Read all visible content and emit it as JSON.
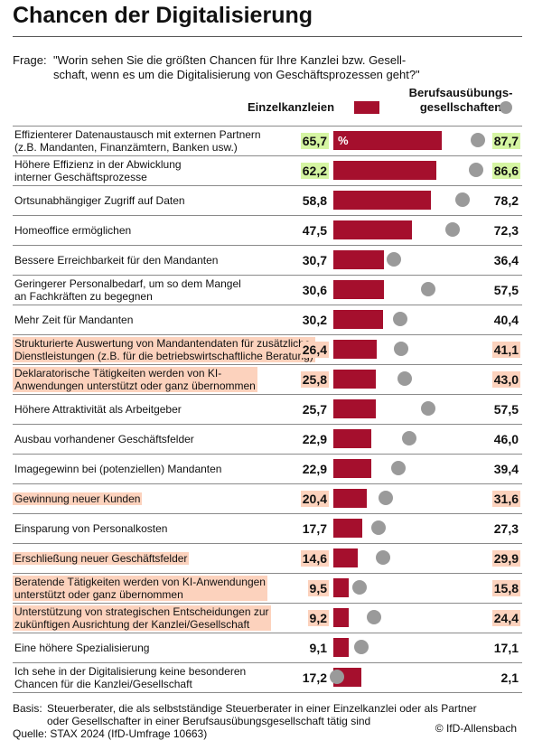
{
  "chart_data": {
    "type": "bar_dot",
    "title": "Chancen der Digitalisierung",
    "question": {
      "label": "Frage:",
      "text": "\"Worin sehen Sie die größten Chancen für Ihre Kanzlei bzw. Gesell-\nschaft, wenn es um die Digitalisierung von Geschäftsprozessen geht?\""
    },
    "categories": [
      "Effizienterer Datenaustausch mit externen Partnern\n(z.B. Mandanten, Finanzämtern, Banken usw.)",
      "Höhere Effizienz in der Abwicklung\ninterner Geschäftsprozesse",
      "Ortsunabhängiger Zugriff auf Daten",
      "Homeoffice ermöglichen",
      "Bessere Erreichbarkeit für den Mandanten",
      "Geringerer Personalbedarf, um so dem Mangel\nan Fachkräften zu begegnen",
      "Mehr Zeit für Mandanten",
      "Strukturierte Auswertung von Mandantendaten für zusätzliche\nDienstleistungen (z.B. für die betriebswirtschaftliche Beratung)",
      "Deklaratorische Tätigkeiten werden von KI-\nAnwendungen unterstützt oder ganz übernommen",
      "Höhere Attraktivität als Arbeitgeber",
      "Ausbau vorhandener Geschäftsfelder",
      "Imagegewinn bei (potenziellen) Mandanten",
      "Gewinnung neuer Kunden",
      "Einsparung von Personalkosten",
      "Erschließung neuer Geschäftsfelder",
      "Beratende Tätigkeiten werden von KI-Anwendungen\nunterstützt oder ganz übernommen",
      "Unterstützung von strategischen Entscheidungen zur\nzukünftigen Ausrichtung der Kanzlei/Gesellschaft",
      "Eine höhere Spezialisierung",
      "Ich sehe in der Digitalisierung keine besonderen\nChancen für die Kanzlei/Gesellschaft"
    ],
    "series": [
      {
        "name": "Einzelkanzleien",
        "color": "#a50f2d",
        "mark": "bar",
        "values": [
          65.7,
          62.2,
          58.8,
          47.5,
          30.7,
          30.6,
          30.2,
          26.4,
          25.8,
          25.7,
          22.9,
          22.9,
          20.4,
          17.7,
          14.6,
          9.5,
          9.2,
          9.1,
          17.2
        ],
        "value_labels": [
          "65,7",
          "62,2",
          "58,8",
          "47,5",
          "30,7",
          "30,6",
          "30,2",
          "26,4",
          "25,8",
          "25,7",
          "22,9",
          "22,9",
          "20,4",
          "17,7",
          "14,6",
          "9,5",
          "9,2",
          "9,1",
          "17,2"
        ]
      },
      {
        "name": "Berufsausübungs-\ngesellschaften",
        "color": "#9a9a9a",
        "mark": "dot",
        "values": [
          87.7,
          86.6,
          78.2,
          72.3,
          36.4,
          57.5,
          40.4,
          41.1,
          43.0,
          57.5,
          46.0,
          39.4,
          31.6,
          27.3,
          29.9,
          15.8,
          24.4,
          17.1,
          2.1
        ],
        "value_labels": [
          "87,7",
          "86,6",
          "78,2",
          "72,3",
          "36,4",
          "57,5",
          "40,4",
          "41,1",
          "43,0",
          "57,5",
          "46,0",
          "39,4",
          "31,6",
          "27,3",
          "29,9",
          "15,8",
          "24,4",
          "17,1",
          "2,1"
        ]
      }
    ],
    "unit_label": "%",
    "highlight": {
      "green": [
        0,
        1
      ],
      "orange": [
        7,
        8,
        12,
        14,
        15,
        16
      ]
    },
    "base": {
      "label": "Basis:",
      "text": "Steuerberater, die als selbstständige Steuerberater in einer Einzelkanzlei oder als Partner\noder Gesellschafter in einer Berufsausübungsgesellschaft tätig sind"
    },
    "source": "Quelle: STAX 2024 (IfD-Umfrage 10663)",
    "credit": "© IfD-Allensbach"
  }
}
